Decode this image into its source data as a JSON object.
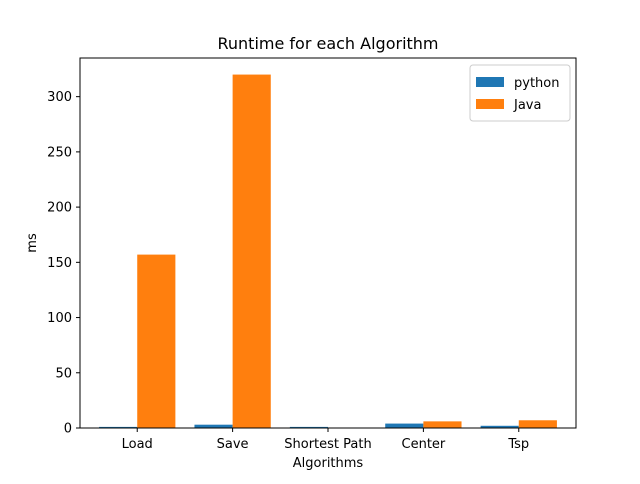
{
  "chart_data": {
    "type": "bar",
    "title": "Runtime for each Algorithm",
    "xlabel": "Algorithms",
    "ylabel": "ms",
    "categories": [
      "Load",
      "Save",
      "Shortest Path",
      "Center",
      "Tsp"
    ],
    "series": [
      {
        "name": "python",
        "color": "#1f77b4",
        "values": [
          1,
          3,
          1,
          4,
          2
        ]
      },
      {
        "name": "Java",
        "color": "#ff7f0e",
        "values": [
          157,
          320,
          0,
          6,
          7
        ]
      }
    ],
    "ylim": [
      0,
      335
    ],
    "yticks": [
      0,
      50,
      100,
      150,
      200,
      250,
      300
    ],
    "legend": {
      "position": "top-right"
    },
    "grid": false
  }
}
